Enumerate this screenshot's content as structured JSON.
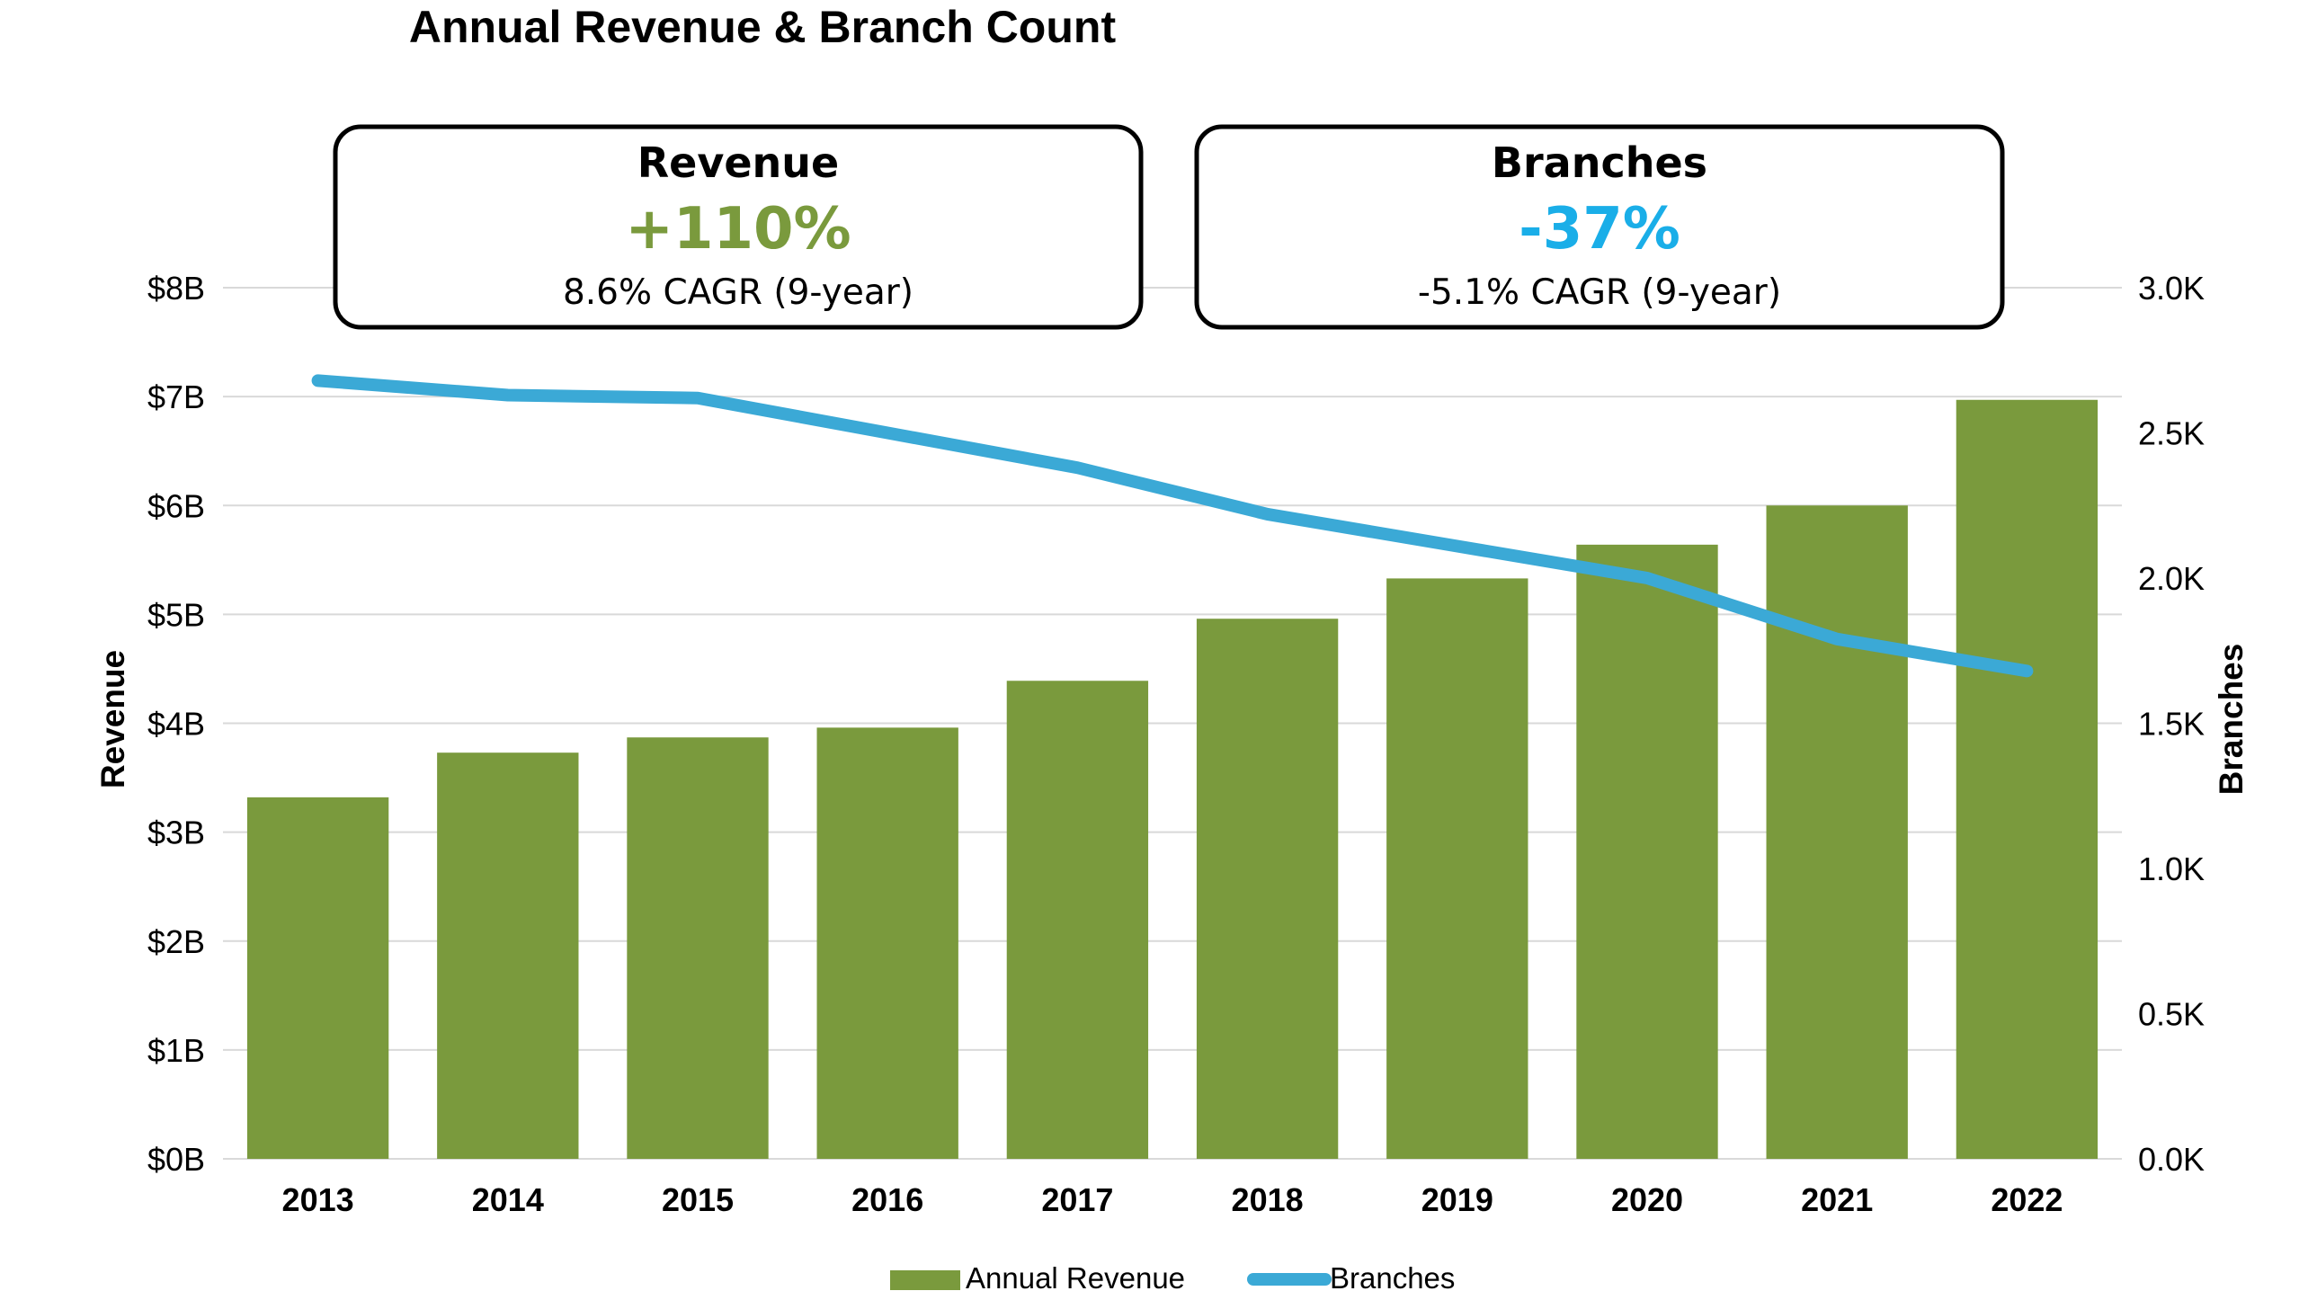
{
  "colors": {
    "revenue_bar": "#7A9A3D",
    "branches_line": "#3BA9D6",
    "kpi_revenue": "#7A9A3D",
    "kpi_branches": "#1AAEE8",
    "gridline": "#D9D9D9"
  },
  "kpis": [
    {
      "heading": "Revenue",
      "value": "+110%",
      "detail": "8.6% CAGR (9-year)",
      "color_key": "kpi_revenue"
    },
    {
      "heading": "Branches",
      "value": "-37%",
      "detail": "-5.1% CAGR (9-year)",
      "color_key": "kpi_branches"
    }
  ],
  "chart_data": {
    "type": "bar",
    "title": "Annual Revenue & Branch Count",
    "categories": [
      "2013",
      "2014",
      "2015",
      "2016",
      "2017",
      "2018",
      "2019",
      "2020",
      "2021",
      "2022"
    ],
    "series": [
      {
        "name": "Annual Revenue",
        "type": "bar",
        "axis": "left",
        "values": [
          3.32,
          3.73,
          3.87,
          3.96,
          4.39,
          4.96,
          5.33,
          5.64,
          6.0,
          6.97
        ]
      },
      {
        "name": "Branches",
        "type": "line",
        "axis": "right",
        "values": [
          2.68,
          2.63,
          2.62,
          2.5,
          2.38,
          2.22,
          2.11,
          2.0,
          1.79,
          1.68
        ]
      }
    ],
    "ylabel": "Revenue",
    "y2label": "Branches",
    "ylim": [
      0,
      8
    ],
    "y2lim": [
      0,
      3
    ],
    "yticks": [
      "$0B",
      "$1B",
      "$2B",
      "$3B",
      "$4B",
      "$5B",
      "$6B",
      "$7B",
      "$8B"
    ],
    "y2ticks": [
      "0.0K",
      "0.5K",
      "1.0K",
      "1.5K",
      "2.0K",
      "2.5K",
      "3.0K"
    ],
    "grid": true,
    "legend_position": "bottom"
  }
}
